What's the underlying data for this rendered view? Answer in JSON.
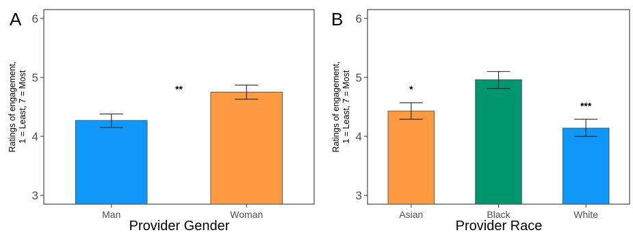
{
  "chart_data": [
    {
      "type": "bar",
      "panel_label": "A",
      "categories": [
        "Man",
        "Woman"
      ],
      "values": [
        4.27,
        4.75
      ],
      "error": [
        [
          4.15,
          4.38
        ],
        [
          4.63,
          4.87
        ]
      ],
      "colors": [
        "#0d98fa",
        "#fd9a42"
      ],
      "significance": [
        {
          "text": "**",
          "between": [
            "Man",
            "Woman"
          ],
          "y": 4.8
        }
      ],
      "xlabel": "Provider Gender",
      "ylabel": [
        "Ratings of engagement,",
        "1 = Least, 7 = Most"
      ],
      "ylim": [
        2.85,
        6.15
      ],
      "yticks": [
        3,
        4,
        5,
        6
      ],
      "grid": false
    },
    {
      "type": "bar",
      "panel_label": "B",
      "categories": [
        "Asian",
        "Black",
        "White"
      ],
      "values": [
        4.43,
        4.96,
        4.14
      ],
      "error": [
        [
          4.29,
          4.57
        ],
        [
          4.81,
          5.1
        ],
        [
          4.0,
          4.29
        ]
      ],
      "colors": [
        "#fd9a42",
        "#009670",
        "#0d98fa"
      ],
      "significance": [
        {
          "text": "*",
          "category": "Asian",
          "y": 4.8
        },
        {
          "text": "***",
          "category": "White",
          "y": 4.52
        }
      ],
      "xlabel": "Provider Race",
      "ylabel": [
        "Ratings of engagement,",
        "1 = Least, 7 = Most"
      ],
      "ylim": [
        2.85,
        6.15
      ],
      "yticks": [
        3,
        4,
        5,
        6
      ],
      "grid": false
    }
  ]
}
